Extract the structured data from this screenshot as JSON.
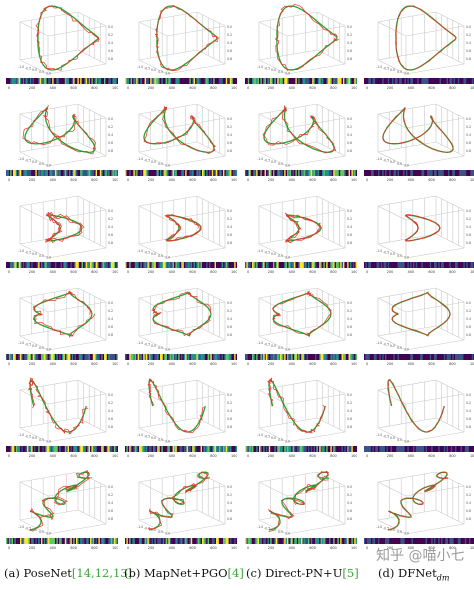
{
  "columns": [
    {
      "letter": "a",
      "method": "PoseNet",
      "refs": "14,12,13"
    },
    {
      "letter": "b",
      "method": "MapNet+PGO",
      "refs": "4"
    },
    {
      "letter": "c",
      "method": "Direct-PN+U",
      "refs": "5"
    },
    {
      "letter": "d",
      "method": "DFNet",
      "subscript": "dm",
      "refs": ""
    }
  ],
  "rows": 6,
  "axis_tick_labels": [
    "0",
    "200",
    "400",
    "600",
    "800",
    "1000"
  ],
  "legend_colors": {
    "ground_truth": "#2ca02c",
    "prediction": "#e8342c"
  },
  "colormap": [
    "#440154",
    "#3b528b",
    "#21918c",
    "#5ec962",
    "#fde725"
  ],
  "watermark": "知乎 @喵小七"
}
